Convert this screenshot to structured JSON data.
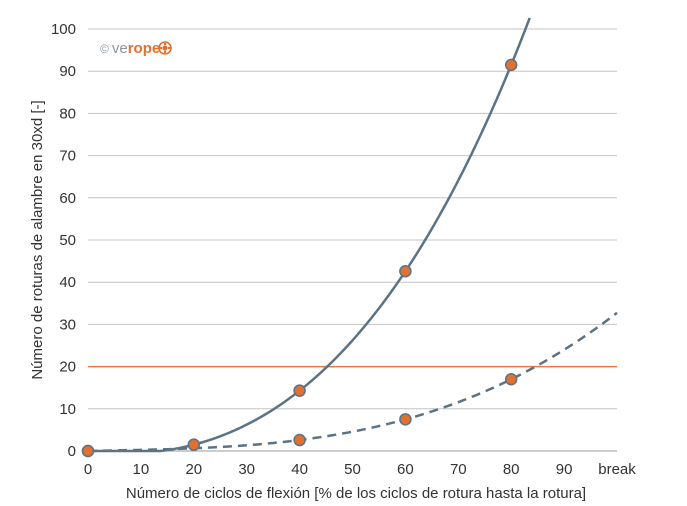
{
  "chart_data": {
    "type": "line",
    "title": "",
    "xlabel": "Número de ciclos de flexión [% de los ciclos de rotura hasta la rotura]",
    "ylabel": "Número de roturas de alambre en 30xd [-]",
    "x_ticks": [
      "0",
      "10",
      "20",
      "30",
      "40",
      "50",
      "60",
      "70",
      "80",
      "90",
      "break"
    ],
    "y_ticks": [
      "0",
      "10",
      "20",
      "30",
      "40",
      "50",
      "60",
      "70",
      "80",
      "90",
      "100"
    ],
    "xlim": [
      0,
      100
    ],
    "ylim": [
      0,
      100
    ],
    "grid": "horizontal",
    "series": [
      {
        "style": "solid",
        "color": "#5b7384",
        "points": [
          [
            0,
            0
          ],
          [
            20,
            1.5
          ],
          [
            40,
            14.3
          ],
          [
            60,
            42.6
          ],
          [
            80,
            91.5
          ]
        ],
        "curve_to_x": 83.5
      },
      {
        "style": "dashed",
        "color": "#5b7384",
        "points": [
          [
            0,
            0
          ],
          [
            40,
            2.6
          ],
          [
            60,
            7.5
          ],
          [
            80,
            17
          ]
        ],
        "curve_to_x": 100
      }
    ],
    "threshold": {
      "y": 20,
      "color": "#e87a3a"
    },
    "marker_color": "#e2702f",
    "logo": {
      "copyright": "©",
      "ve": "ve",
      "rope": "rope"
    }
  }
}
